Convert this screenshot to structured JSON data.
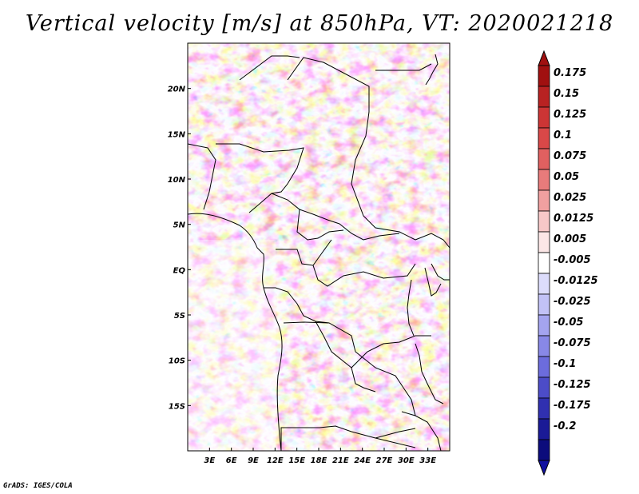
{
  "title": "Vertical velocity [m/s] at 850hPa, VT: 2020021218",
  "footer": "GrADS: IGES/COLA",
  "map": {
    "lon_range": [
      0,
      36
    ],
    "lat_range": [
      -20,
      25
    ],
    "x_ticks": [
      "3E",
      "6E",
      "9E",
      "12E",
      "15E",
      "18E",
      "21E",
      "24E",
      "27E",
      "30E",
      "33E"
    ],
    "x_tick_values": [
      3,
      6,
      9,
      12,
      15,
      18,
      21,
      24,
      27,
      30,
      33
    ],
    "y_ticks": [
      "20N",
      "15N",
      "10N",
      "5N",
      "EQ",
      "5S",
      "10S",
      "15S"
    ],
    "y_tick_values": [
      20,
      15,
      10,
      5,
      0,
      -5,
      -10,
      -15
    ]
  },
  "colorbar": {
    "labels": [
      "0.175",
      "0.15",
      "0.125",
      "0.1",
      "0.075",
      "0.05",
      "0.025",
      "0.0125",
      "0.005",
      "-0.005",
      "-0.0125",
      "-0.025",
      "-0.05",
      "-0.075",
      "-0.1",
      "-0.125",
      "-0.175",
      "-0.2"
    ],
    "colors": [
      "#a01010",
      "#b82222",
      "#cc3535",
      "#d94848",
      "#e06060",
      "#e87b7b",
      "#f0a0a0",
      "#f7c8c8",
      "#fbe6e6",
      "#ffffff",
      "#dcdcfb",
      "#c2c2f6",
      "#a4a4ef",
      "#8888e6",
      "#6c6cdc",
      "#4c4cc8",
      "#3030b0",
      "#1a1a96",
      "#0c0c7c"
    ],
    "end_colors": {
      "top": "#a01010",
      "bottom": "#1010a0"
    }
  }
}
